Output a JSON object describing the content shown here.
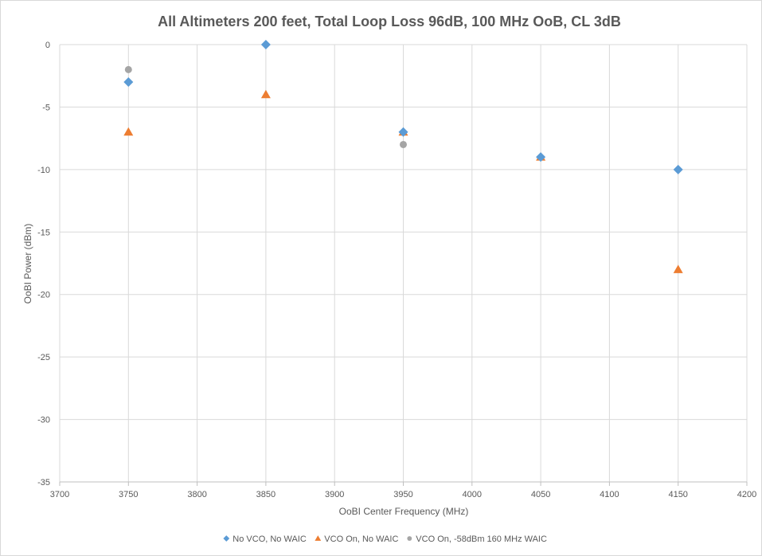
{
  "chart_data": {
    "type": "scatter",
    "title": "All Altimeters 200 feet, Total Loop Loss 96dB, 100 MHz OoB, CL 3dB",
    "xlabel": "OoBI Center Frequency (MHz)",
    "ylabel": "OoBI Power (dBm)",
    "xlim": [
      3700,
      4200
    ],
    "ylim": [
      -35,
      0
    ],
    "xticks": [
      3700,
      3750,
      3800,
      3850,
      3900,
      3950,
      4000,
      4050,
      4100,
      4150,
      4200
    ],
    "yticks": [
      0,
      -5,
      -10,
      -15,
      -20,
      -25,
      -30,
      -35
    ],
    "grid": true,
    "legend_position": "bottom",
    "series": [
      {
        "name": "No VCO, No WAIC",
        "marker": "diamond",
        "color": "#5b9bd5",
        "points": [
          [
            3750,
            -3
          ],
          [
            3850,
            0
          ],
          [
            3950,
            -7
          ],
          [
            4050,
            -9
          ],
          [
            4150,
            -10
          ]
        ]
      },
      {
        "name": "VCO On, No WAIC",
        "marker": "triangle",
        "color": "#ed7d31",
        "points": [
          [
            3750,
            -7
          ],
          [
            3850,
            -4
          ],
          [
            3950,
            -7
          ],
          [
            4050,
            -9
          ],
          [
            4150,
            -18
          ]
        ]
      },
      {
        "name": "VCO On, -58dBm 160 MHz WAIC",
        "marker": "circle",
        "color": "#a5a5a5",
        "points": [
          [
            3750,
            -2
          ],
          [
            3950,
            -8
          ]
        ]
      }
    ]
  }
}
